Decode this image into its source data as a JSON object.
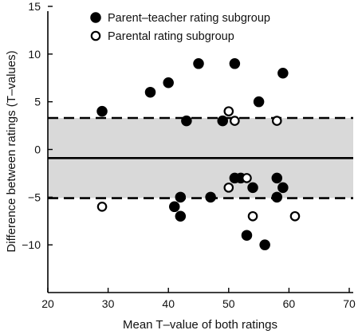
{
  "chart_data": {
    "type": "scatter",
    "title": "",
    "xlabel": "Mean T–value of both ratings",
    "ylabel": "Difference between  ratings  (T–values)",
    "xlim": [
      20,
      70
    ],
    "ylim": [
      -15,
      15
    ],
    "xticks": [
      20,
      30,
      40,
      50,
      60,
      70
    ],
    "yticks": [
      15,
      10,
      5,
      0,
      -5,
      -10
    ],
    "legend": "top-center",
    "grid": false,
    "series": [
      {
        "name": "Parent–teacher rating subgroup",
        "marker": "filled-circle",
        "color": "#000000",
        "points": [
          [
            29,
            4
          ],
          [
            37,
            6
          ],
          [
            40,
            7
          ],
          [
            43,
            3
          ],
          [
            45,
            9
          ],
          [
            51,
            9
          ],
          [
            49,
            3
          ],
          [
            55,
            5
          ],
          [
            59,
            8
          ],
          [
            51,
            -3
          ],
          [
            52,
            -3
          ],
          [
            54,
            -4
          ],
          [
            58,
            -3
          ],
          [
            59,
            -4
          ],
          [
            58,
            -5
          ],
          [
            47,
            -5
          ],
          [
            42,
            -5
          ],
          [
            41,
            -6
          ],
          [
            42,
            -7
          ],
          [
            53,
            -9
          ],
          [
            56,
            -10
          ]
        ]
      },
      {
        "name": "Parental rating subgroup",
        "marker": "open-circle",
        "color": "#000000",
        "points": [
          [
            29,
            -6
          ],
          [
            50,
            4
          ],
          [
            51,
            3
          ],
          [
            58,
            3
          ],
          [
            50,
            -4
          ],
          [
            53,
            -3
          ],
          [
            54,
            -7
          ],
          [
            61,
            -7
          ]
        ]
      }
    ],
    "reference_lines": [
      {
        "y": -0.9,
        "style": "solid"
      },
      {
        "y": 3.3,
        "style": "dashed"
      },
      {
        "y": -5.1,
        "style": "dashed"
      }
    ],
    "shaded_band": {
      "y_from": -5.1,
      "y_to": 3.3,
      "color": "#d9d9d9"
    }
  }
}
